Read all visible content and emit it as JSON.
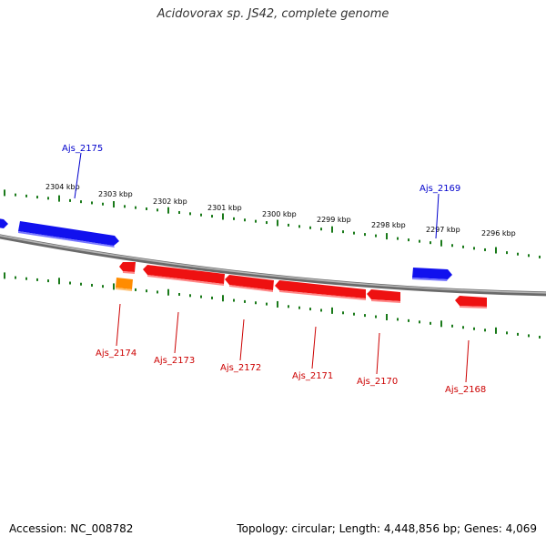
{
  "title": "Acidovorax sp. JS42, complete genome",
  "footer": {
    "accession": "Accession: NC_008782",
    "topology": "Topology: circular; Length: 4,448,856 bp; Genes: 4,069"
  },
  "colors": {
    "forward_gene": "#0000ee",
    "reverse_gene": "#ee0000",
    "other_feature": "#ff8c00",
    "backbone": "#888888",
    "ticks": "#1a7a1a",
    "forward_label": "#0000cc",
    "reverse_label": "#cc0000"
  },
  "scale_labels": [
    "2304 kbp",
    "2303 kbp",
    "2302 kbp",
    "2301 kbp",
    "2300 kbp",
    "2299 kbp",
    "2298 kbp",
    "2297 kbp",
    "2296 kbp"
  ],
  "genes_top": [
    {
      "label": "Ajs_2175",
      "strand": "forward"
    },
    {
      "label": "Ajs_2169",
      "strand": "forward"
    }
  ],
  "genes_bottom": [
    {
      "label": "Ajs_2174",
      "strand": "reverse"
    },
    {
      "label": "Ajs_2173",
      "strand": "reverse"
    },
    {
      "label": "Ajs_2172",
      "strand": "reverse"
    },
    {
      "label": "Ajs_2171",
      "strand": "reverse"
    },
    {
      "label": "Ajs_2170",
      "strand": "reverse"
    },
    {
      "label": "Ajs_2168",
      "strand": "reverse"
    }
  ]
}
